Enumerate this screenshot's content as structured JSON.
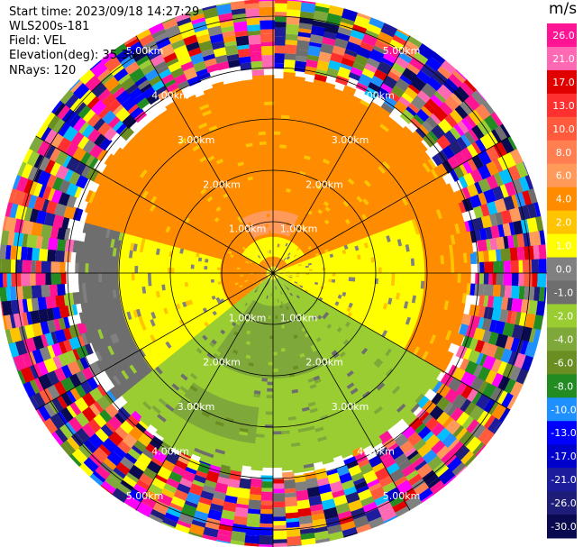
{
  "header": {
    "start_time": "Start time: 2023/09/18 14:27:29",
    "station": "WLS200s-181",
    "field": "Field: VEL",
    "elevation": "Elevation(deg): 35.30",
    "nrays": "NRays: 120"
  },
  "colorbar": {
    "unit": "m/s",
    "labels": [
      "26.0",
      "21.0",
      "17.0",
      "13.0",
      "10.0",
      "8.0",
      "6.0",
      "4.0",
      "2.0",
      "1.0",
      "0.0",
      "-1.0",
      "-2.0",
      "-4.0",
      "-6.0",
      "-8.0",
      "-10.0",
      "-13.0",
      "-17.0",
      "-21.0",
      "-26.0",
      "-30.0"
    ],
    "colors": [
      "#ff1493",
      "#ff69b4",
      "#e00000",
      "#ff3030",
      "#ff5a3c",
      "#ff7f50",
      "#ff9a5a",
      "#ff8c00",
      "#ffc400",
      "#ffff00",
      "#808080",
      "#6e6e6e",
      "#9acd32",
      "#7fa83a",
      "#6b8e23",
      "#228b22",
      "#1e90ff",
      "#0000ff",
      "#0000cd",
      "#1c1c9c",
      "#1e1e78",
      "#0a0a50"
    ]
  },
  "chart_data": {
    "type": "heatmap",
    "subtype": "polar-ppi",
    "field": "VEL",
    "unit": "m/s",
    "nrays": 120,
    "range_rings_km": [
      1.0,
      2.0,
      3.0,
      4.0,
      5.0
    ],
    "range_ring_labels": [
      "1.00km",
      "2.00km",
      "3.00km",
      "4.00km",
      "5.00km"
    ],
    "spokes_deg": [
      0,
      30,
      60,
      90,
      120,
      150,
      180,
      210,
      240,
      270,
      300,
      330
    ],
    "colorbar_min": -30.0,
    "colorbar_max": 26.0,
    "regions": [
      {
        "sector": "north",
        "range_km": [
          0,
          3.8
        ],
        "velocity": 2.0,
        "color": "yellow"
      },
      {
        "sector": "north",
        "range_km": [
          0.8,
          1.2
        ],
        "velocity": 4.0,
        "color": "orange"
      },
      {
        "sector": "east",
        "range_km": [
          0.5,
          3.5
        ],
        "velocity": 0.0,
        "color": "gray"
      },
      {
        "sector": "south",
        "range_km": [
          0,
          3.8
        ],
        "velocity": -2.0,
        "color": "olive-green"
      },
      {
        "sector": "south",
        "range_km": [
          0.5,
          2.5
        ],
        "velocity": -4.0,
        "color": "green"
      },
      {
        "sector": "west",
        "range_km": [
          1.0,
          3.5
        ],
        "velocity": 0.0,
        "color": "gray"
      },
      {
        "sector": "all",
        "range_km": [
          3.8,
          5.3
        ],
        "velocity": null,
        "color": "noisy-mixed"
      }
    ]
  }
}
